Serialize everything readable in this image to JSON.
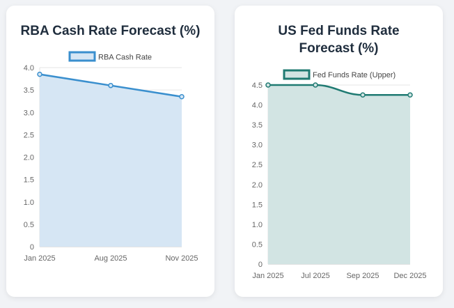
{
  "chart_data": [
    {
      "type": "area",
      "title": "RBA Cash Rate Forecast (%)",
      "legend": "RBA Cash Rate",
      "categories": [
        "Jan 2025",
        "Aug 2025",
        "Nov 2025"
      ],
      "series": [
        {
          "name": "RBA Cash Rate",
          "values": [
            3.85,
            3.6,
            3.35
          ]
        }
      ],
      "ylim": [
        0,
        4.0
      ],
      "yticks": [
        "0",
        "0.5",
        "1.0",
        "1.5",
        "2.0",
        "2.5",
        "3.0",
        "3.5",
        "4.0"
      ],
      "line_color": "#3a8fce",
      "fill_color": "#d6e6f4",
      "curved": false
    },
    {
      "type": "area",
      "title": "US Fed Funds Rate Forecast (%)",
      "legend": "Fed Funds Rate (Upper)",
      "categories": [
        "Jan 2025",
        "Jul 2025",
        "Sep 2025",
        "Dec 2025"
      ],
      "series": [
        {
          "name": "Fed Funds Rate (Upper)",
          "values": [
            4.5,
            4.5,
            4.25,
            4.25
          ]
        }
      ],
      "ylim": [
        0,
        4.5
      ],
      "yticks": [
        "0",
        "0.5",
        "1.0",
        "1.5",
        "2.0",
        "2.5",
        "3.0",
        "3.5",
        "4.0",
        "4.5"
      ],
      "line_color": "#1f7a72",
      "fill_color": "#d2e4e3",
      "curved": true
    }
  ]
}
